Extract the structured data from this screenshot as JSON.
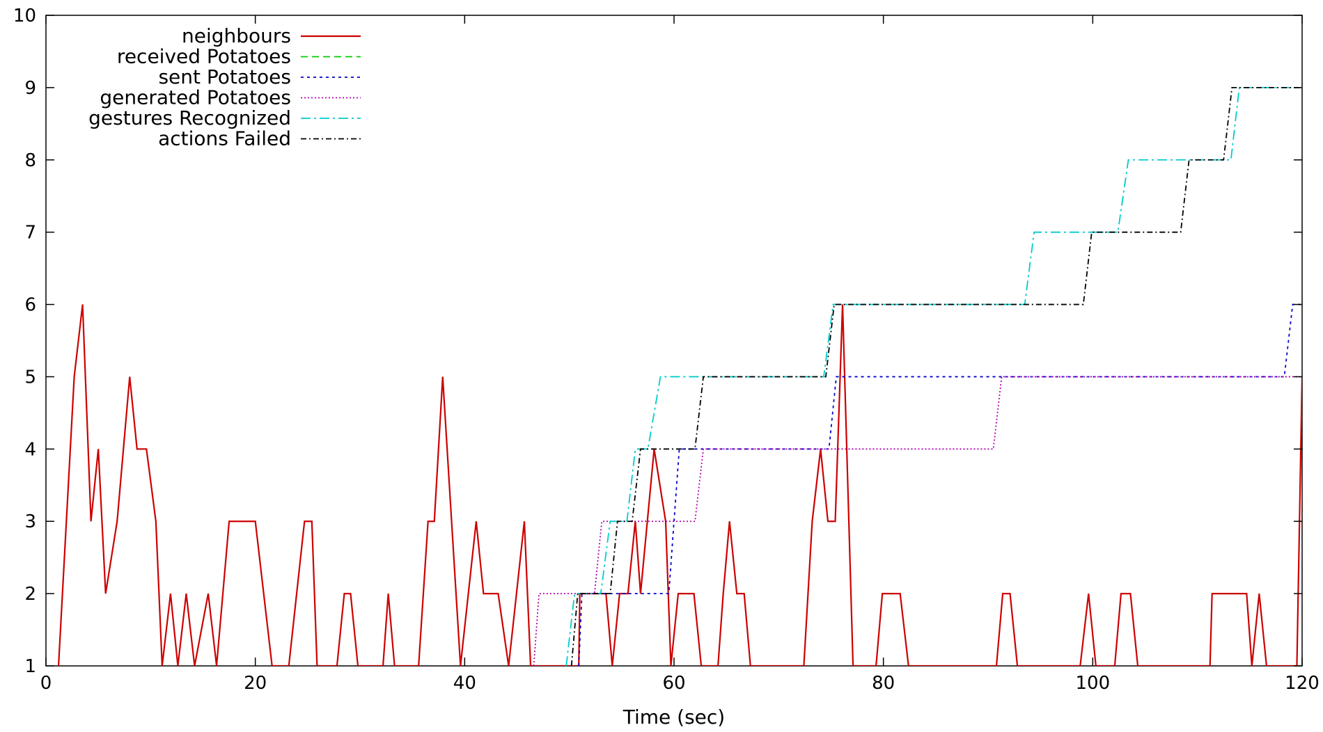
{
  "chart_data": {
    "type": "line",
    "title": "",
    "xlabel": "Time (sec)",
    "ylabel": "",
    "xlim": [
      0,
      120
    ],
    "ylim": [
      1,
      10
    ],
    "xticks": [
      0,
      20,
      40,
      60,
      80,
      100,
      120
    ],
    "yticks": [
      1,
      2,
      3,
      4,
      5,
      6,
      7,
      8,
      9,
      10
    ],
    "grid": false,
    "legend_position": "top-left",
    "series": [
      {
        "name": "neighbours",
        "color": "#cc0000",
        "dash": "solid",
        "points": [
          [
            1.2,
            1
          ],
          [
            2.7,
            5
          ],
          [
            3.5,
            6
          ],
          [
            4.3,
            3
          ],
          [
            5,
            4
          ],
          [
            5.7,
            2
          ],
          [
            6.8,
            3
          ],
          [
            8,
            5
          ],
          [
            8.7,
            4
          ],
          [
            9.6,
            4
          ],
          [
            10.5,
            3
          ],
          [
            11.1,
            1
          ],
          [
            11.9,
            2
          ],
          [
            12.6,
            1
          ],
          [
            13.4,
            2
          ],
          [
            14.2,
            1
          ],
          [
            15.5,
            2
          ],
          [
            16.3,
            1
          ],
          [
            17.5,
            3
          ],
          [
            20,
            3
          ],
          [
            21.6,
            1
          ],
          [
            23.2,
            1
          ],
          [
            24.7,
            3
          ],
          [
            25.4,
            3
          ],
          [
            25.9,
            1
          ],
          [
            27.8,
            1
          ],
          [
            28.5,
            2
          ],
          [
            29.1,
            2
          ],
          [
            29.8,
            1
          ],
          [
            32.2,
            1
          ],
          [
            32.7,
            2
          ],
          [
            33.3,
            1
          ],
          [
            35.6,
            1
          ],
          [
            36.5,
            3
          ],
          [
            37.1,
            3
          ],
          [
            37.9,
            5
          ],
          [
            39.6,
            1
          ],
          [
            41.1,
            3
          ],
          [
            41.8,
            2
          ],
          [
            43.2,
            2
          ],
          [
            44.2,
            1
          ],
          [
            45.7,
            3
          ],
          [
            46.3,
            1
          ],
          [
            50.9,
            1
          ],
          [
            51,
            2
          ],
          [
            53.5,
            2
          ],
          [
            54.1,
            1
          ],
          [
            54.8,
            2
          ],
          [
            55.6,
            2
          ],
          [
            56.3,
            3
          ],
          [
            56.8,
            2
          ],
          [
            58.1,
            4
          ],
          [
            59.2,
            3
          ],
          [
            59.7,
            1
          ],
          [
            60.4,
            2
          ],
          [
            61.9,
            2
          ],
          [
            62.6,
            1
          ],
          [
            64.2,
            1
          ],
          [
            64.7,
            2
          ],
          [
            65.3,
            3
          ],
          [
            66,
            2
          ],
          [
            66.7,
            2
          ],
          [
            67.3,
            1
          ],
          [
            72.4,
            1
          ],
          [
            73.2,
            3
          ],
          [
            74,
            4
          ],
          [
            74.7,
            3
          ],
          [
            75.4,
            3
          ],
          [
            76.1,
            6
          ],
          [
            77.1,
            1
          ],
          [
            79.3,
            1
          ],
          [
            79.9,
            2
          ],
          [
            81.6,
            2
          ],
          [
            82.4,
            1
          ],
          [
            90.8,
            1
          ],
          [
            91.4,
            2
          ],
          [
            92.1,
            2
          ],
          [
            92.8,
            1
          ],
          [
            98.8,
            1
          ],
          [
            99.6,
            2
          ],
          [
            100.3,
            1
          ],
          [
            102.1,
            1
          ],
          [
            102.7,
            2
          ],
          [
            103.6,
            2
          ],
          [
            104.3,
            1
          ],
          [
            111.2,
            1
          ],
          [
            111.4,
            2
          ],
          [
            114.7,
            2
          ],
          [
            115.2,
            1
          ],
          [
            115.9,
            2
          ],
          [
            116.6,
            1
          ],
          [
            119.5,
            1
          ],
          [
            120,
            5
          ]
        ]
      },
      {
        "name": "received Potatoes",
        "color": "#00cc00",
        "dash": "10,6",
        "points": []
      },
      {
        "name": "sent Potatoes",
        "color": "#0000cc",
        "dash": "4,5",
        "points": [
          [
            50.9,
            1
          ],
          [
            51.2,
            2
          ],
          [
            59.5,
            2
          ],
          [
            60.5,
            4
          ],
          [
            74.8,
            4
          ],
          [
            75.5,
            5
          ],
          [
            118.3,
            5
          ],
          [
            119.1,
            6
          ],
          [
            120,
            6
          ]
        ]
      },
      {
        "name": "generated Potatoes",
        "color": "#b000b0",
        "dash": "2,3",
        "points": [
          [
            46.6,
            1
          ],
          [
            47.1,
            2
          ],
          [
            52.4,
            2
          ],
          [
            53.1,
            3
          ],
          [
            62,
            3
          ],
          [
            62.8,
            4
          ],
          [
            90.5,
            4
          ],
          [
            91.3,
            5
          ],
          [
            120,
            5
          ]
        ]
      },
      {
        "name": "gestures Recognized",
        "color": "#00cccc",
        "dash": "14,5,3,5",
        "points": [
          [
            49.7,
            1
          ],
          [
            50.5,
            2
          ],
          [
            53,
            2
          ],
          [
            53.9,
            3
          ],
          [
            55.5,
            3
          ],
          [
            56.3,
            4
          ],
          [
            57.5,
            4
          ],
          [
            58.7,
            5
          ],
          [
            74.3,
            5
          ],
          [
            75.2,
            6
          ],
          [
            93.5,
            6
          ],
          [
            94.4,
            7
          ],
          [
            102.4,
            7
          ],
          [
            103.4,
            8
          ],
          [
            113.2,
            8
          ],
          [
            114,
            9
          ],
          [
            120,
            9
          ]
        ]
      },
      {
        "name": "actions Failed",
        "color": "#000000",
        "dash": "8,4,2,4",
        "points": [
          [
            50.2,
            1
          ],
          [
            50.8,
            2
          ],
          [
            53.9,
            2
          ],
          [
            54.6,
            3
          ],
          [
            56,
            3
          ],
          [
            56.8,
            4
          ],
          [
            62,
            4
          ],
          [
            62.8,
            5
          ],
          [
            74.5,
            5
          ],
          [
            75.3,
            6
          ],
          [
            99.1,
            6
          ],
          [
            99.9,
            7
          ],
          [
            108.4,
            7
          ],
          [
            109.2,
            8
          ],
          [
            112.5,
            8
          ],
          [
            113.3,
            9
          ],
          [
            120,
            9
          ]
        ]
      }
    ]
  }
}
